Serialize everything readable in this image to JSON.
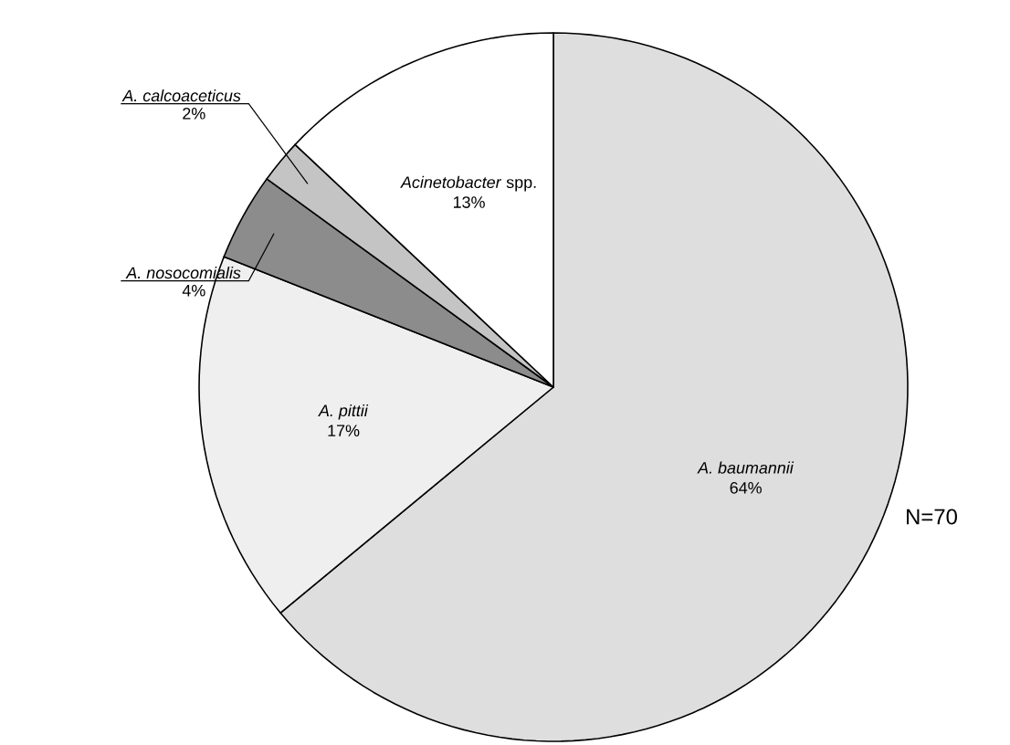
{
  "chart_data": {
    "type": "pie",
    "categories": [
      "*A. baumannii*",
      "*A. pittii*",
      "*A. nosocomialis*",
      "*A. calcoaceticus*",
      "*Acinetobacter* spp."
    ],
    "values": [
      64,
      17,
      4,
      2,
      13
    ],
    "value_labels": [
      "64%",
      "17%",
      "4%",
      "2%",
      "13%"
    ],
    "colors": [
      "#dedede",
      "#efefef",
      "#8c8c8c",
      "#c4c4c4",
      "#ffffff"
    ],
    "annotations": [
      "N=70"
    ]
  }
}
